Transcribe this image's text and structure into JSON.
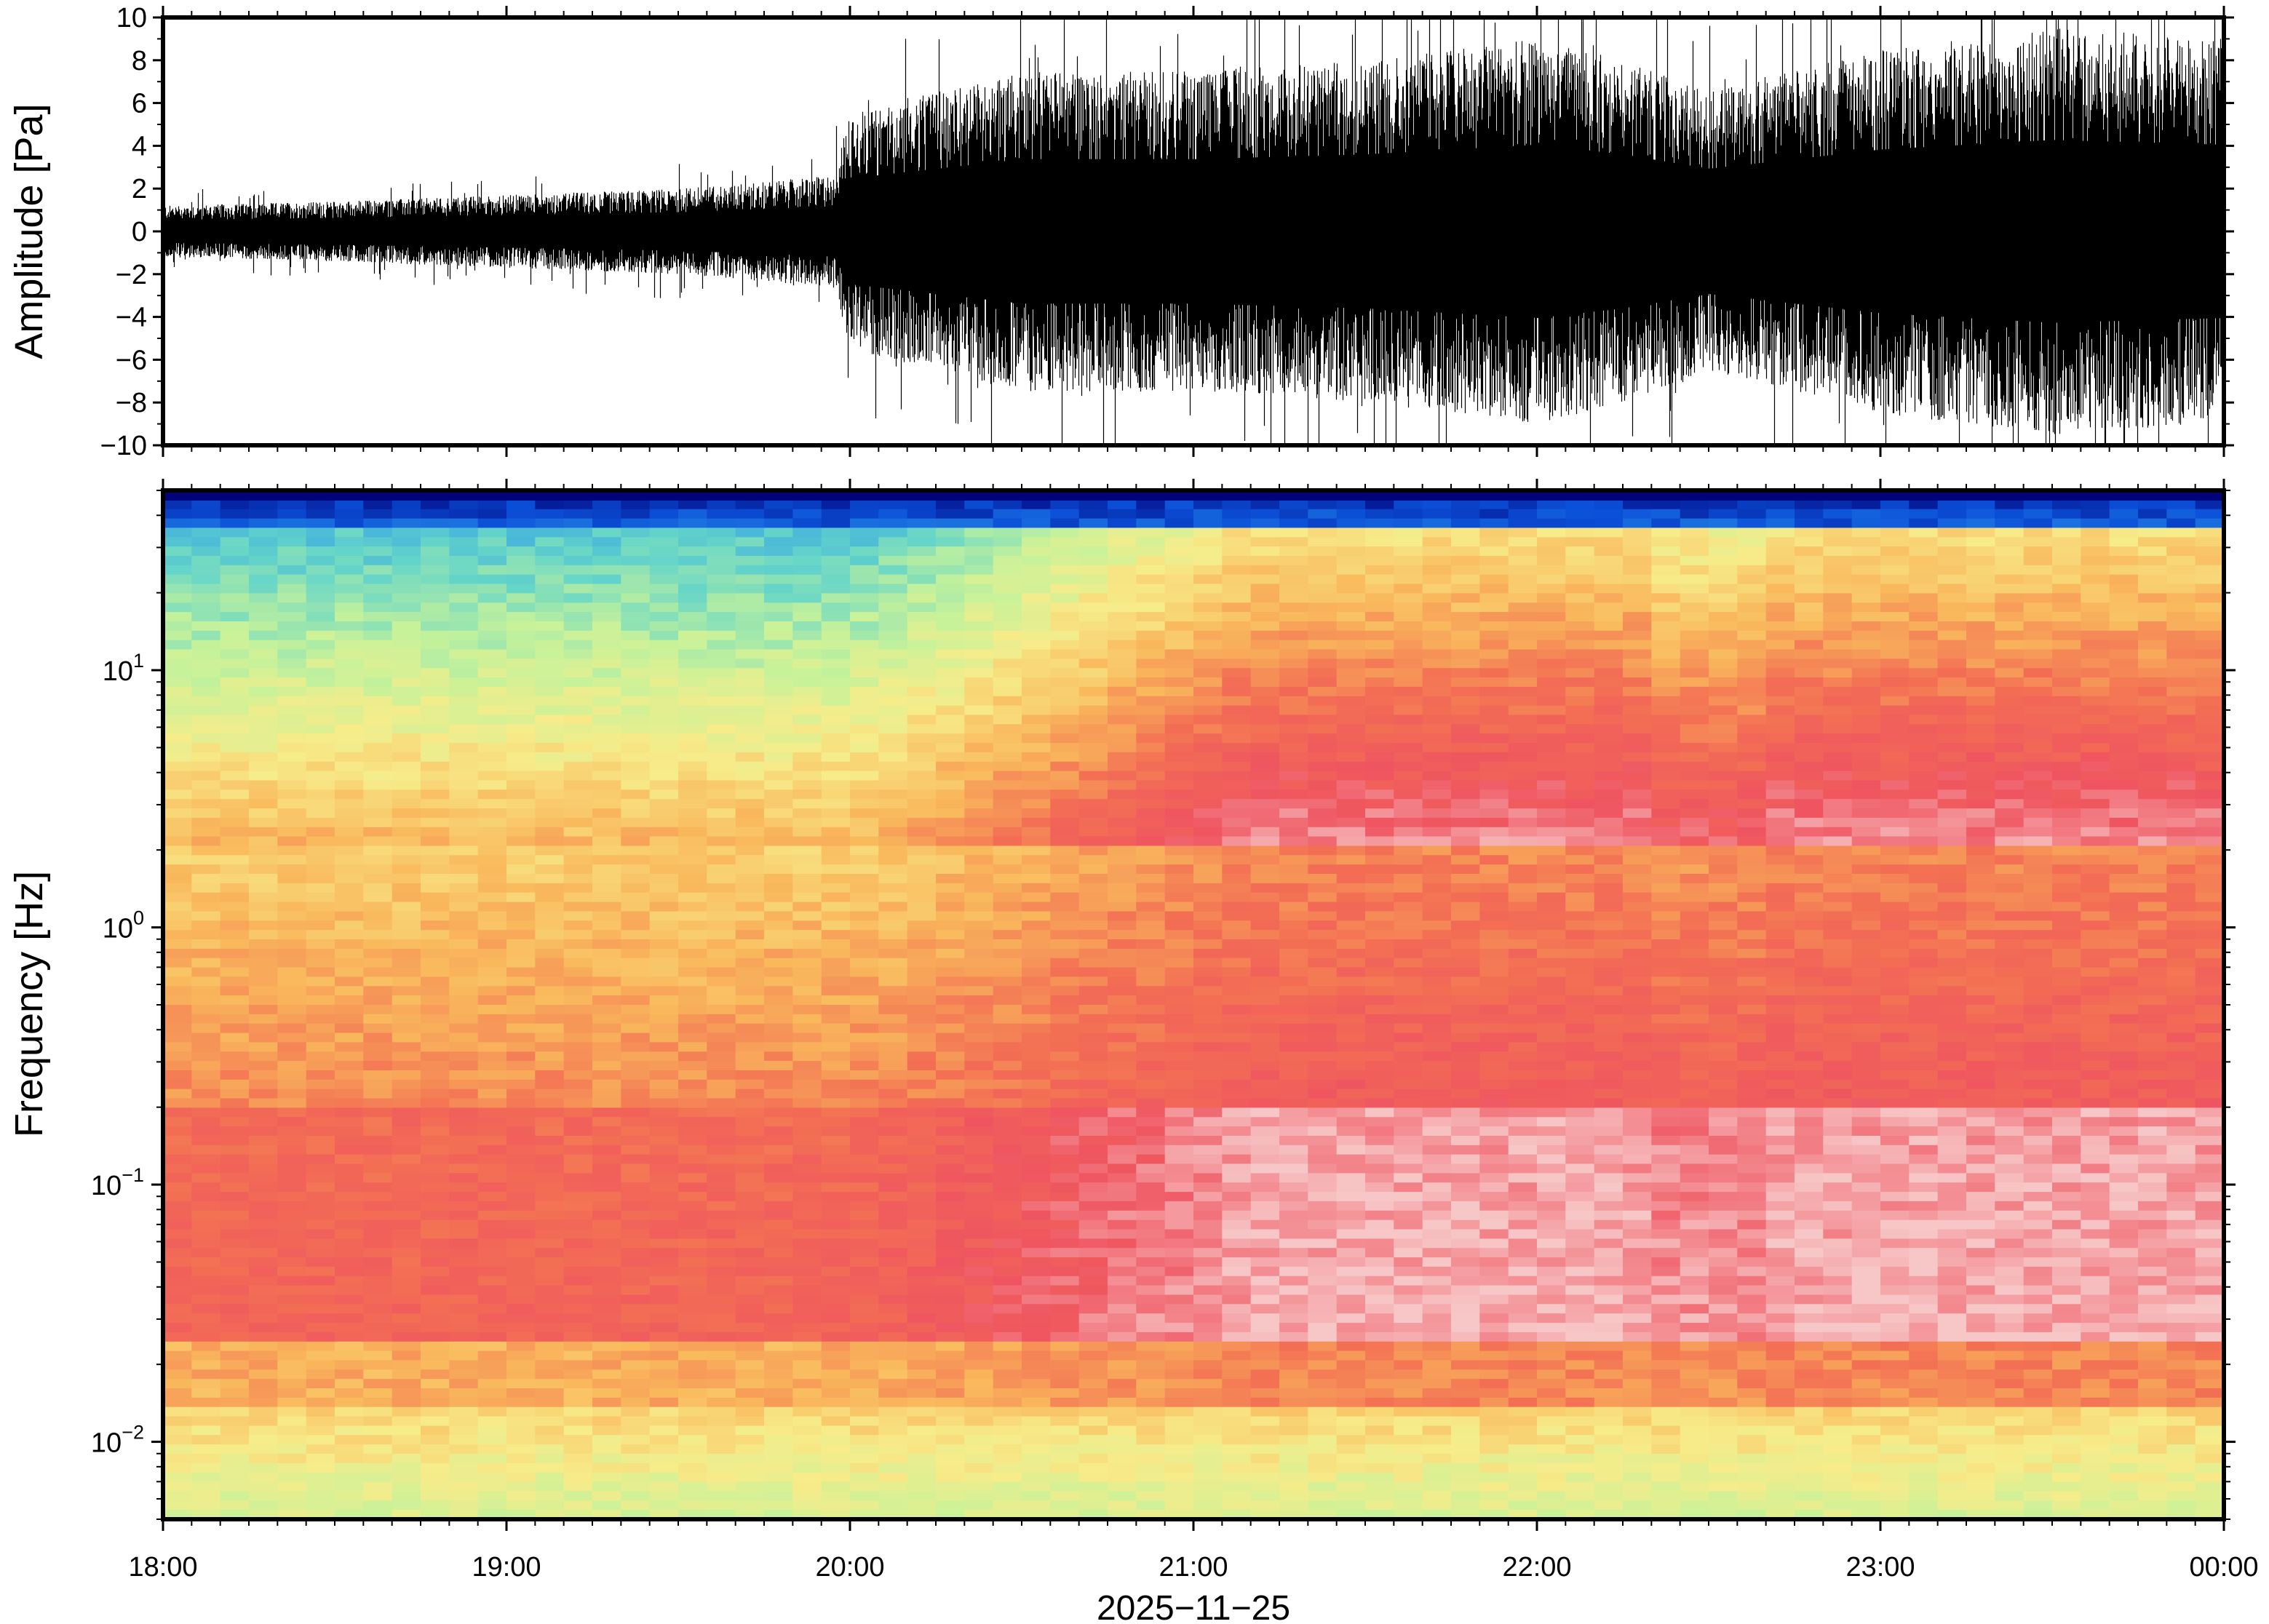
{
  "chart_data": [
    {
      "type": "line",
      "panel": "waveform",
      "ylabel": "Amplitude [Pa]",
      "ylim": [
        -10,
        10
      ],
      "yticks": [
        "10",
        "8",
        "6",
        "4",
        "2",
        "0",
        "−2",
        "−4",
        "−6",
        "−8",
        "−10"
      ],
      "ytick_values": [
        10,
        8,
        6,
        4,
        2,
        0,
        -2,
        -4,
        -6,
        -8,
        -10
      ],
      "envelope": {
        "time_hours": [
          18.0,
          18.5,
          19.0,
          19.5,
          19.95,
          20.0,
          20.25,
          20.5,
          21.0,
          21.5,
          22.0,
          22.25,
          22.5,
          23.0,
          23.5,
          24.0
        ],
        "amplitude": [
          1.2,
          1.4,
          1.7,
          2.0,
          2.6,
          5.5,
          6.5,
          7.5,
          7.5,
          8.0,
          9.0,
          8.0,
          6.5,
          8.5,
          9.5,
          9.0
        ]
      },
      "grid": false
    },
    {
      "type": "heatmap",
      "panel": "spectrogram",
      "ylabel": "Frequency [Hz]",
      "yscale": "log",
      "ylim": [
        0.005,
        50
      ],
      "yticks": [
        {
          "base": "10",
          "exp": "1",
          "value": 10
        },
        {
          "base": "10",
          "exp": "0",
          "value": 1
        },
        {
          "base": "10",
          "exp": "−1",
          "value": 0.1
        },
        {
          "base": "10",
          "exp": "−2",
          "value": 0.01
        }
      ],
      "colormap": [
        "#02027a",
        "#0b50d8",
        "#2f9ce8",
        "#66d6c8",
        "#c6f29a",
        "#f7ec8a",
        "#f9b85c",
        "#f36f54",
        "#ef5560",
        "#f7c7c7"
      ],
      "grid": false
    }
  ],
  "xaxis": {
    "ticks": [
      "18:00",
      "19:00",
      "20:00",
      "21:00",
      "22:00",
      "23:00",
      "00:00"
    ],
    "tick_hours": [
      18,
      19,
      20,
      21,
      22,
      23,
      24
    ],
    "xlim_hours": [
      18,
      24
    ],
    "date_label": "2025−11−25"
  }
}
